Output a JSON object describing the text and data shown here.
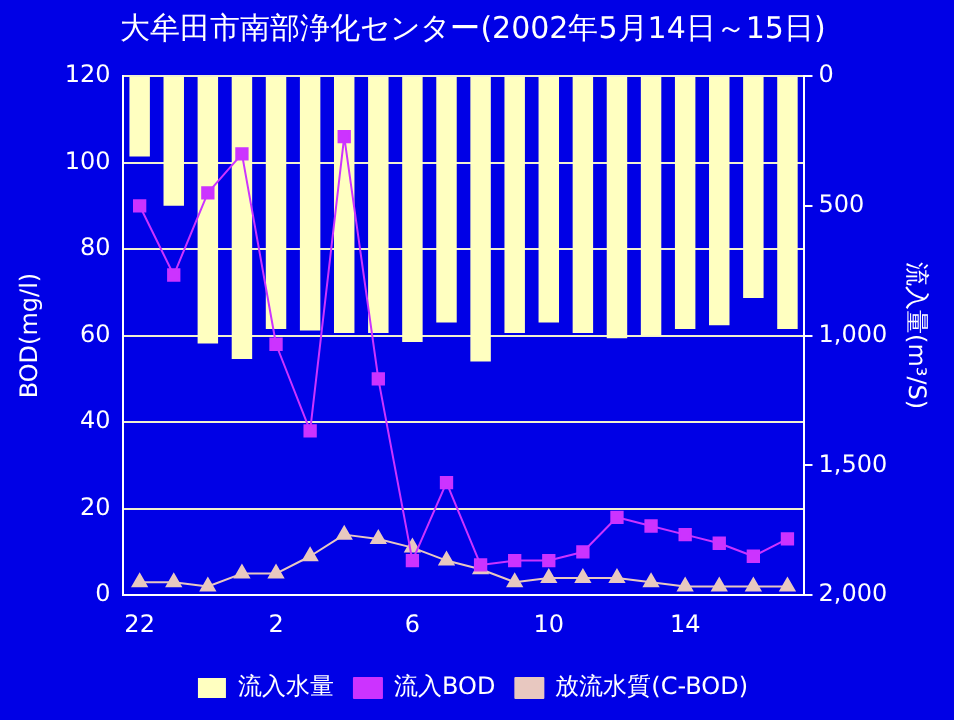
{
  "chart_data": {
    "type": "bar",
    "title": "大牟田市南部浄化センター(2002年5月14日～15日)",
    "ylabel": "BOD(mg/l)",
    "y2label": "流入量(m³/S)",
    "categories": [
      "22",
      null,
      null,
      null,
      "2",
      null,
      null,
      null,
      "6",
      null,
      null,
      null,
      "10",
      null,
      null,
      null,
      "14",
      null,
      null,
      null
    ],
    "series": [
      {
        "name": "流入水量",
        "axis": "y2",
        "color": "#ffffc0",
        "values": [
          310,
          500,
          1030,
          1090,
          975,
          980,
          990,
          990,
          1025,
          950,
          1100,
          990,
          950,
          990,
          1010,
          1000,
          975,
          960,
          855,
          975
        ]
      },
      {
        "name": "流入BOD",
        "type": "line",
        "marker": "square",
        "color": "#cc33ff",
        "values": [
          90,
          74,
          93,
          102,
          58,
          38,
          106,
          50,
          8,
          26,
          7,
          8,
          8,
          10,
          18,
          16,
          14,
          12,
          9,
          13
        ]
      },
      {
        "name": "放流水質(C-BOD)",
        "type": "line",
        "marker": "triangle",
        "color": "#e8c8c0",
        "values": [
          3,
          3,
          2,
          5,
          5,
          9,
          14,
          13,
          11,
          8,
          6,
          3,
          4,
          4,
          4,
          3,
          2,
          2,
          2,
          2
        ]
      }
    ],
    "ylim": [
      0,
      120
    ],
    "yticks": [
      0,
      20,
      40,
      60,
      80,
      100,
      120
    ],
    "y2lim": [
      2000,
      0
    ],
    "y2ticks": [
      {
        "value": 0,
        "label": "0"
      },
      {
        "value": 500,
        "label": "500"
      },
      {
        "value": 1000,
        "label": "1,000"
      },
      {
        "value": 1500,
        "label": "1,500"
      },
      {
        "value": 2000,
        "label": "2,000"
      }
    ],
    "grid": "y",
    "legend": "bottom"
  }
}
